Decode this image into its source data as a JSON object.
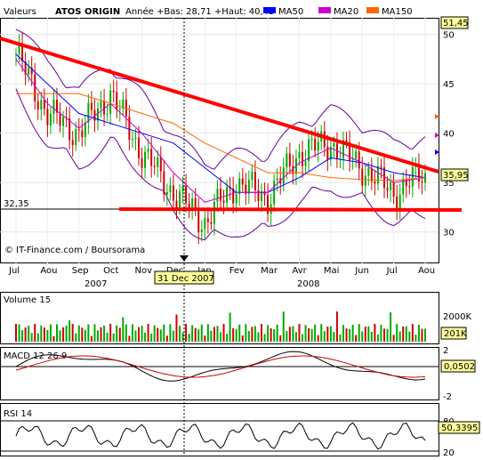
{
  "header": {
    "valeurs": "Valeurs",
    "stock": "ATOS ORIGIN",
    "year_stats": "Année +Bas: 28,71 +Haut: 40,45",
    "ma50_label": "MA50",
    "ma20_label": "MA20",
    "ma150_label": "MA150"
  },
  "colors": {
    "ma50": "#0000ff",
    "ma20": "#cc00cc",
    "ma150": "#ff6600",
    "trendline": "#ff0000",
    "up_candle": "#00aa00",
    "down_candle": "#cc0000",
    "price_marker_bg": "#ffff99"
  },
  "main_panel": {
    "source": "© IT-Finance.com / Boursorama",
    "y_ticks": [
      "50",
      "45",
      "40",
      "35",
      "30"
    ],
    "support_label": "32,35",
    "top_marker": "51,45",
    "last_price": "35,95",
    "date_marker": "31 Dec 2007",
    "month_labels": [
      "Jul",
      "Aou",
      "Sep",
      "Oct",
      "Nov",
      "Dec",
      "Jan",
      "Fev",
      "Mar",
      "Avr",
      "Mai",
      "Jun",
      "Jul",
      "Aou"
    ],
    "year_labels": [
      "2007",
      "2008"
    ]
  },
  "volume_panel": {
    "title": "Volume 15",
    "y_tick": "2000K",
    "last_value": "201K"
  },
  "macd_panel": {
    "title": "MACD 12 26 9",
    "y_ticks": [
      "2",
      "-2"
    ],
    "last_value": "0,0502"
  },
  "rsi_panel": {
    "title": "RSI 14",
    "y_ticks": [
      "80",
      "20"
    ],
    "last_value": "50,3395"
  },
  "chart_data": {
    "type": "line",
    "title": "ATOS ORIGIN",
    "x": [
      "Jul",
      "Aou",
      "Sep",
      "Oct",
      "Nov",
      "Dec",
      "Jan",
      "Fev",
      "Mar",
      "Avr",
      "Mai",
      "Jun",
      "Jul",
      "Aou"
    ],
    "series": [
      {
        "name": "ATOS ORIGIN",
        "values": [
          48,
          42,
          40,
          44,
          38,
          34,
          31,
          35,
          33.5,
          38,
          39,
          36.5,
          34,
          35.95
        ]
      },
      {
        "name": "MA50",
        "values": [
          48,
          45,
          42,
          41,
          40,
          39,
          36.5,
          34,
          34,
          35.5,
          37.5,
          37,
          36,
          35.5
        ]
      },
      {
        "name": "MA20",
        "values": [
          47.5,
          43,
          40.5,
          43,
          40,
          36,
          33,
          34,
          34,
          37,
          38.5,
          37,
          35,
          35.5
        ]
      },
      {
        "name": "MA150",
        "values": [
          44,
          44,
          44,
          43,
          42,
          41,
          39,
          37.5,
          36,
          36,
          35.5,
          35.3,
          35.2,
          35.5
        ]
      }
    ],
    "ylim": [
      27,
      51.5
    ],
    "grid": true,
    "annotations": [
      "32,35",
      "51,45",
      "35,95",
      "31 Dec 2007"
    ]
  }
}
